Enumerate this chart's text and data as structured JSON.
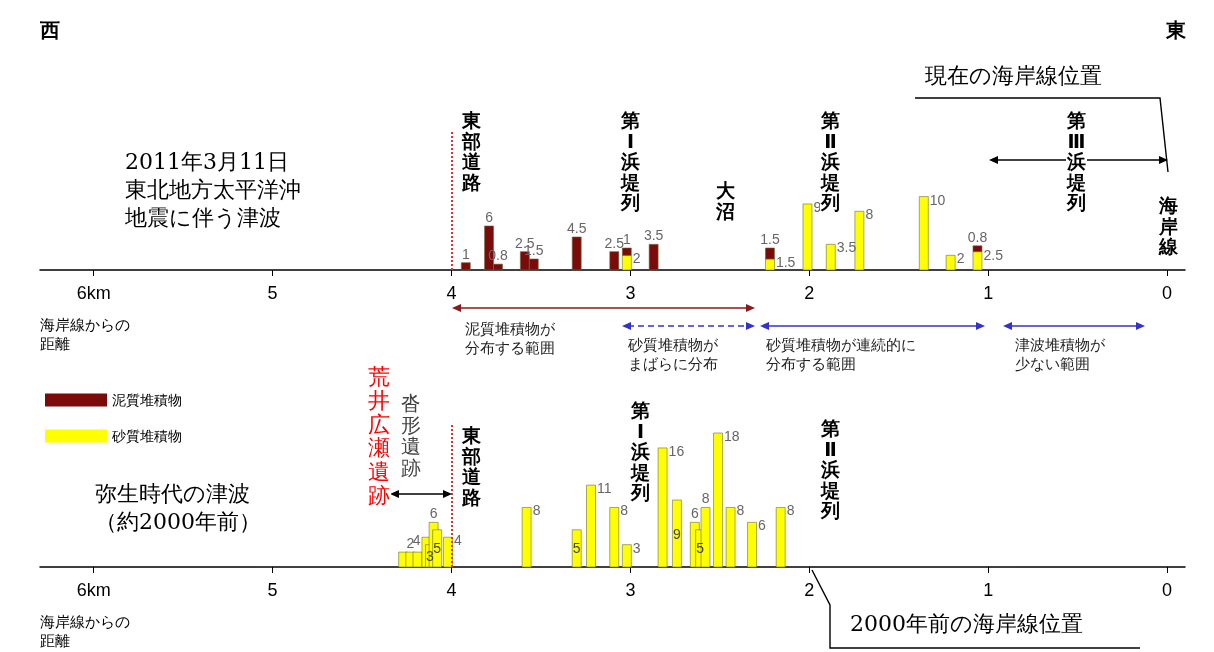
{
  "chart_data": [
    {
      "type": "bar",
      "title": "2011年3月11日",
      "subtitle": "東北地方太平洋沖地震に伴う津波",
      "xlabel": "海岸線からの距離",
      "stacked": true,
      "legend": "bottom left",
      "tick_labels": "x",
      "data_labels": true,
      "xlim": [
        6.3,
        -0.1
      ],
      "xticks": [
        {
          "value": 6,
          "label": "6km"
        },
        5,
        4,
        3,
        2,
        1,
        0
      ],
      "x": [
        3.92,
        3.79,
        3.74,
        3.59,
        3.54,
        3.3,
        3.09,
        3.02,
        2.87,
        2.22,
        2.01,
        1.88,
        1.72,
        1.36,
        1.21,
        1.06
      ],
      "series": [
        {
          "name": "砂質堆積物",
          "color": "#ffff00",
          "values": [
            null,
            null,
            null,
            null,
            null,
            null,
            null,
            2,
            null,
            1.5,
            9,
            3.5,
            8,
            10,
            2,
            2.5
          ]
        },
        {
          "name": "泥質堆積物",
          "color": "#7b0a0a",
          "values": [
            1,
            6,
            0.8,
            2.5,
            1.5,
            4.5,
            2.5,
            1,
            3.5,
            1.5,
            null,
            null,
            null,
            null,
            null,
            0.8
          ]
        }
      ],
      "ref_lines": [
        {
          "axis": "x",
          "value": 4,
          "label": "東部道路",
          "color": "#e03030",
          "line_style": "dotted"
        }
      ],
      "annotations": [
        "西",
        "東",
        "現在の海岸線位置",
        "第Ⅰ浜堤列",
        "大沼",
        "第Ⅱ浜堤列",
        "海岸線",
        "第Ⅲ浜堤列",
        "泥質堆積物が分布する範囲",
        "砂質堆積物がまばらに分布",
        "砂質堆積物が連続的に分布する範囲",
        "津波堆積物が少ない範囲"
      ]
    },
    {
      "type": "bar",
      "title": "弥生時代の津波",
      "subtitle": "（約2000年前）",
      "xlabel": "海岸線からの距離",
      "legend": false,
      "tick_labels": "x",
      "xlim": [
        6.3,
        -0.1
      ],
      "xticks": [
        {
          "value": 6,
          "label": "6km"
        },
        5,
        4,
        3,
        2,
        1,
        0
      ],
      "x": [
        4.27,
        4.23,
        4.19,
        4.14,
        4.12,
        4.1,
        4.08,
        4.02,
        3.58,
        3.3,
        3.22,
        3.09,
        3.02,
        2.82,
        2.74,
        2.64,
        2.61,
        2.58,
        2.51,
        2.44,
        2.32,
        2.16
      ],
      "series": [
        {
          "color": "#ffff00",
          "values": [
            2,
            2,
            2,
            4,
            3,
            6,
            5,
            4,
            8,
            5,
            11,
            8,
            3,
            16,
            9,
            6,
            5,
            8,
            18,
            8,
            6,
            8
          ],
          "value_labels": [
            null,
            "2",
            null,
            "4",
            "3",
            "6",
            "5",
            "4",
            "8",
            "5",
            "11",
            "8",
            "3",
            "16",
            "9",
            "6",
            "5",
            "8",
            "18",
            "8",
            "6",
            "8"
          ]
        }
      ],
      "ref_lines": [
        {
          "axis": "x",
          "value": 4,
          "label": "東部道路",
          "color": "#e03030",
          "line_style": "dotted"
        }
      ],
      "annotations": [
        "荒井広瀬遺跡",
        "沓形遺跡",
        "第Ⅰ浜堤列",
        "第Ⅱ浜堤列",
        "2000年前の海岸線位置"
      ]
    }
  ]
}
